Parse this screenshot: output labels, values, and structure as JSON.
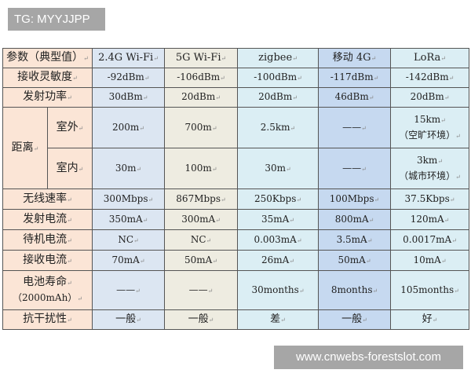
{
  "tag_label": "TG: MYYJJPP",
  "watermark": "www.cnwebs-forestslot.com",
  "colors": {
    "param_col": "#fbe5d6",
    "wifi24": "#dce6f2",
    "wifi5": "#eeece1",
    "zigbee": "#dbeef4",
    "lte": "#c6d9f0",
    "lora": "#dbeef4"
  },
  "header": [
    "参数（典型值）",
    "2.4G Wi-Fi",
    "5G Wi-Fi",
    "zigbee",
    "移动 4G",
    "LoRa"
  ],
  "distance_label": "距离",
  "outdoor": {
    "label": "室外",
    "values": [
      "200m",
      "700m",
      "2.5km",
      "——"
    ],
    "lora": [
      "15km",
      "（空旷环境）"
    ]
  },
  "indoor": {
    "label": "室内",
    "values": [
      "30m",
      "100m",
      "30m",
      "——"
    ],
    "lora": [
      "3km",
      "（城市环境）"
    ]
  },
  "rows": [
    {
      "label": "接收灵敏度",
      "values": [
        "-92dBm",
        "-106dBm",
        "-100dBm",
        "-117dBm",
        "-142dBm"
      ]
    },
    {
      "label": "发射功率",
      "values": [
        "30dBm",
        "20dBm",
        "20dBm",
        "46dBm",
        "20dBm"
      ]
    }
  ],
  "rows2": [
    {
      "label": "无线速率",
      "values": [
        "300Mbps",
        "867Mbps",
        "250Kbps",
        "100Mbps",
        "37.5Kbps"
      ]
    },
    {
      "label": "发射电流",
      "values": [
        "350mA",
        "300mA",
        "35mA",
        "800mA",
        "120mA"
      ]
    },
    {
      "label": "待机电流",
      "values": [
        "NC",
        "NC",
        "0.003mA",
        "3.5mA",
        "0.0017mA"
      ]
    },
    {
      "label": "接收电流",
      "values": [
        "70mA",
        "50mA",
        "26mA",
        "50mA",
        "10mA"
      ]
    }
  ],
  "battery": {
    "label": [
      "电池寿命",
      "（2000mAh）"
    ],
    "values": [
      "——",
      "——",
      "30months",
      "8months",
      "105months"
    ]
  },
  "interference": {
    "label": "抗干扰性",
    "values": [
      "一般",
      "一般",
      "差",
      "一般",
      "好"
    ]
  }
}
